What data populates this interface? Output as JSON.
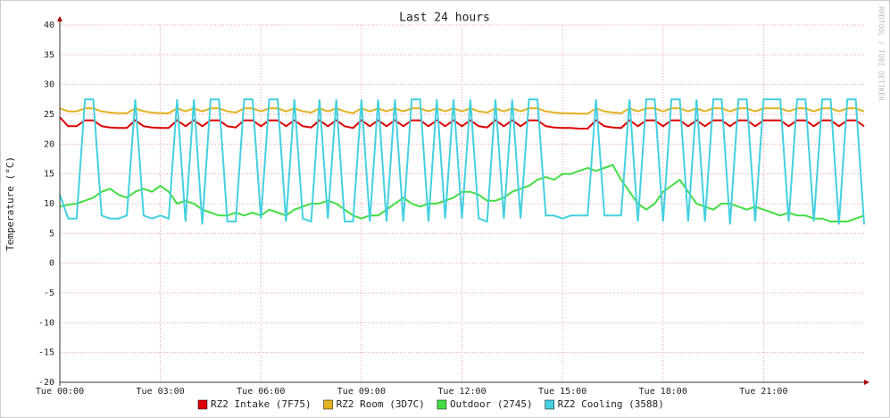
{
  "chart_data": {
    "type": "line",
    "title": "Last 24 hours",
    "y_label": "Temperature (°C)",
    "watermark": "RRDTOOL / TOBI OETIKER",
    "x": [
      0,
      0.25,
      0.5,
      0.75,
      1,
      1.25,
      1.5,
      1.75,
      2,
      2.25,
      2.5,
      2.75,
      3,
      3.25,
      3.5,
      3.75,
      4,
      4.25,
      4.5,
      4.75,
      5,
      5.25,
      5.5,
      5.75,
      6,
      6.25,
      6.5,
      6.75,
      7,
      7.25,
      7.5,
      7.75,
      8,
      8.25,
      8.5,
      8.75,
      9,
      9.25,
      9.5,
      9.75,
      10,
      10.25,
      10.5,
      10.75,
      11,
      11.25,
      11.5,
      11.75,
      12,
      12.25,
      12.5,
      12.75,
      13,
      13.25,
      13.5,
      13.75,
      14,
      14.25,
      14.5,
      14.75,
      15,
      15.25,
      15.5,
      15.75,
      16,
      16.25,
      16.5,
      16.75,
      17,
      17.25,
      17.5,
      17.75,
      18,
      18.25,
      18.5,
      18.75,
      19,
      19.25,
      19.5,
      19.75,
      20,
      20.25,
      20.5,
      20.75,
      21,
      21.25,
      21.5,
      21.75,
      22,
      22.25,
      22.5,
      22.75,
      23,
      23.25,
      23.5,
      23.75,
      24
    ],
    "series": [
      {
        "name": "RZ2 Intake (7F75)",
        "color": "#dd0000",
        "values": [
          24.5,
          23,
          23,
          24,
          24,
          23,
          22.8,
          22.7,
          22.7,
          24,
          23,
          22.8,
          22.7,
          22.7,
          24,
          23,
          24,
          23,
          24,
          24,
          23,
          22.8,
          24,
          24,
          23,
          24,
          24,
          23,
          24,
          23,
          22.8,
          24,
          23,
          24,
          23,
          22.7,
          24,
          23,
          24,
          23,
          24,
          23,
          24,
          24,
          23,
          24,
          23,
          24,
          23,
          24,
          23,
          22.8,
          24,
          23,
          24,
          23,
          24,
          24,
          23,
          22.8,
          22.7,
          22.7,
          22.6,
          22.6,
          24,
          23,
          22.8,
          22.7,
          24,
          23,
          24,
          24,
          23,
          24,
          24,
          23,
          24,
          23,
          24,
          24,
          23,
          24,
          24,
          23,
          24,
          24,
          24,
          23,
          24,
          24,
          23,
          24,
          24,
          23,
          24,
          24,
          23
        ]
      },
      {
        "name": "RZ2 Room (3D7C)",
        "color": "#e2b21e",
        "values": [
          26,
          25.5,
          25.5,
          26,
          26,
          25.5,
          25.3,
          25.2,
          25.2,
          26,
          25.5,
          25.3,
          25.2,
          25.2,
          26,
          25.5,
          26,
          25.5,
          26,
          26,
          25.5,
          25.3,
          26,
          26,
          25.5,
          26,
          26,
          25.5,
          26,
          25.5,
          25.3,
          26,
          25.5,
          26,
          25.5,
          25.2,
          26,
          25.5,
          26,
          25.5,
          26,
          25.5,
          26,
          26,
          25.5,
          26,
          25.5,
          26,
          25.5,
          26,
          25.5,
          25.3,
          26,
          25.5,
          26,
          25.5,
          26,
          26,
          25.5,
          25.3,
          25.2,
          25.2,
          25.1,
          25.1,
          26,
          25.5,
          25.3,
          25.2,
          26,
          25.5,
          26,
          26,
          25.5,
          26,
          26,
          25.5,
          26,
          25.5,
          26,
          26,
          25.5,
          26,
          26,
          25.5,
          26,
          26,
          26,
          25.5,
          26,
          26,
          25.5,
          26,
          26,
          25.5,
          26,
          26,
          25.5
        ]
      },
      {
        "name": "Outdoor (2745)",
        "color": "#44dd44",
        "values": [
          9.5,
          9.8,
          10,
          10.5,
          11,
          12,
          12.5,
          11.5,
          11,
          12,
          12.5,
          12,
          13,
          12,
          10,
          10.5,
          10,
          9,
          8.5,
          8,
          8,
          8.5,
          8,
          8.5,
          8,
          9,
          8.5,
          8,
          9,
          9.5,
          10,
          10,
          10.5,
          10,
          9,
          8,
          7.5,
          8,
          8,
          9,
          10,
          11,
          10,
          9.5,
          10,
          10,
          10.5,
          11,
          12,
          12,
          11.5,
          10.5,
          10.5,
          11,
          12,
          12.5,
          13,
          14,
          14.5,
          14,
          15,
          15,
          15.5,
          16,
          15.5,
          16,
          16.5,
          14,
          12,
          10,
          9,
          10,
          12,
          13,
          14,
          12,
          10,
          9.5,
          9,
          10,
          10,
          9.5,
          9,
          9.5,
          9,
          8.5,
          8,
          8.5,
          8,
          8,
          7.5,
          7.5,
          7,
          7,
          7,
          7.5,
          8
        ]
      },
      {
        "name": "RZ2 Cooling (3588)",
        "color": "#44d0e0",
        "values": [
          11.5,
          7.5,
          7.5,
          27.5,
          27.5,
          8,
          7.5,
          7.5,
          8,
          27.5,
          8,
          7.5,
          8,
          7.5,
          27.5,
          7,
          27.5,
          6.5,
          27.5,
          27.5,
          7,
          7,
          27.5,
          27.5,
          7.5,
          27.5,
          27.5,
          7,
          27.5,
          7.5,
          7,
          27.5,
          7.5,
          27.5,
          7,
          7,
          27.5,
          7,
          27.5,
          7,
          27.5,
          7,
          27.5,
          27.5,
          7,
          27.5,
          7.5,
          27.5,
          7.5,
          27.5,
          7.5,
          7,
          27.5,
          7.5,
          27.5,
          7.5,
          27.5,
          27.5,
          8,
          8,
          7.5,
          8,
          8,
          8,
          27.5,
          8,
          8,
          8,
          27.5,
          7,
          27.5,
          27.5,
          7,
          27.5,
          27.5,
          7,
          27.5,
          7,
          27.5,
          27.5,
          6.5,
          27.5,
          27.5,
          7,
          27.5,
          27.5,
          27.5,
          7,
          27.5,
          27.5,
          7,
          27.5,
          27.5,
          6.5,
          27.5,
          27.5,
          6.5
        ]
      }
    ],
    "xlim": [
      0,
      24
    ],
    "xticks": [
      {
        "value": 0,
        "label": "Tue 00:00"
      },
      {
        "value": 3,
        "label": "Tue 03:00"
      },
      {
        "value": 6,
        "label": "Tue 06:00"
      },
      {
        "value": 9,
        "label": "Tue 09:00"
      },
      {
        "value": 12,
        "label": "Tue 12:00"
      },
      {
        "value": 15,
        "label": "Tue 15:00"
      },
      {
        "value": 18,
        "label": "Tue 18:00"
      },
      {
        "value": 21,
        "label": "Tue 21:00"
      }
    ],
    "ylim": [
      -20,
      40
    ],
    "yticks": [
      -20,
      -15,
      -10,
      -5,
      0,
      5,
      10,
      15,
      20,
      25,
      30,
      35,
      40
    ],
    "grid": true,
    "legend": "bottom"
  }
}
